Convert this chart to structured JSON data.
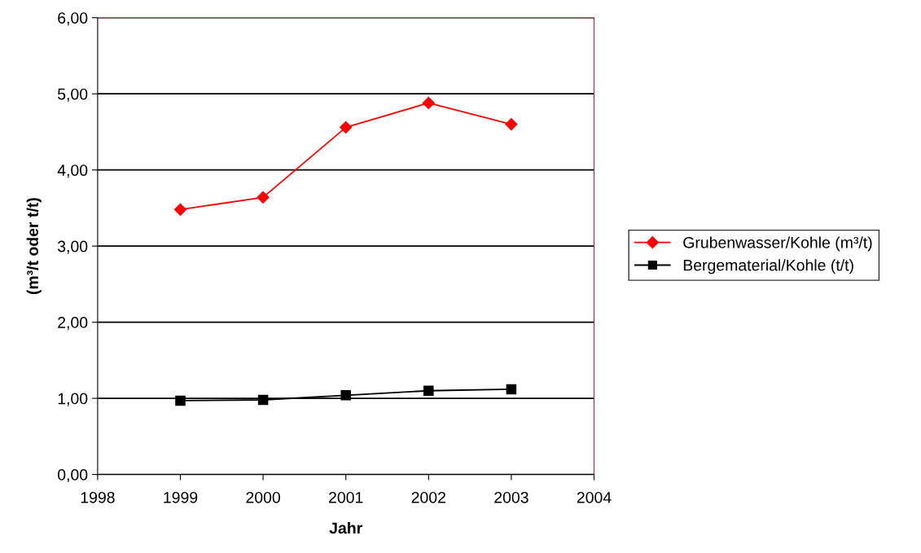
{
  "chart_data": {
    "type": "line",
    "xlabel": "Jahr",
    "ylabel": "(m³/t oder t/t)",
    "x": [
      1999,
      2000,
      2001,
      2002,
      2003
    ],
    "series": [
      {
        "name": "Grubenwasser/Kohle (m³/t)",
        "color": "#ff0000",
        "marker": "diamond",
        "values": [
          3.48,
          3.64,
          4.56,
          4.88,
          4.6
        ]
      },
      {
        "name": "Bergematerial/Kohle (t/t)",
        "color": "#000000",
        "marker": "square",
        "values": [
          0.97,
          0.98,
          1.04,
          1.1,
          1.12
        ]
      }
    ],
    "xlim": [
      1998,
      2004
    ],
    "xticks": [
      1998,
      1999,
      2000,
      2001,
      2002,
      2003,
      2004
    ],
    "ylim": [
      0,
      6
    ],
    "yticks": [
      {
        "value": 0,
        "label": "0,00"
      },
      {
        "value": 1,
        "label": "1,00"
      },
      {
        "value": 2,
        "label": "2,00"
      },
      {
        "value": 3,
        "label": "3,00"
      },
      {
        "value": 4,
        "label": "4,00"
      },
      {
        "value": 5,
        "label": "5,00"
      },
      {
        "value": 6,
        "label": "6,00"
      }
    ],
    "grid": "y",
    "legend": "right",
    "line_style": "solid"
  }
}
